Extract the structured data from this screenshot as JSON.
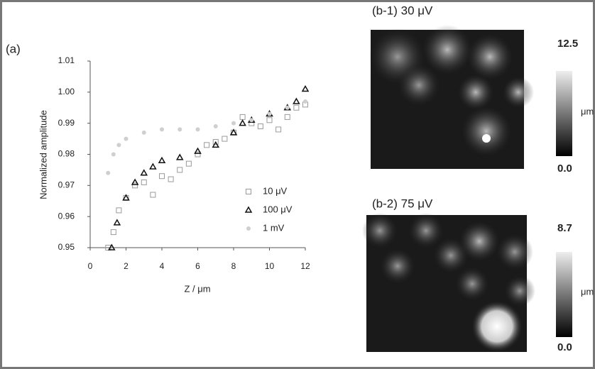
{
  "chart_data": {
    "type": "scatter",
    "panel_label": "(a)",
    "x_label": "Z / μm",
    "y_label": "Normalized amplitude",
    "xlim": [
      0,
      12
    ],
    "xticks": [
      0,
      2,
      4,
      6,
      8,
      10,
      12
    ],
    "ylim": [
      0.95,
      1.01
    ],
    "yticks": [
      0.95,
      0.96,
      0.97,
      0.98,
      0.99,
      {
        "value": 1,
        "label": "1.00"
      },
      1.01
    ],
    "series": [
      {
        "name": "10 μV",
        "color": "#9a9a9a",
        "marker": "square",
        "x": [
          1,
          1.3,
          1.6,
          2,
          2.5,
          3,
          3.5,
          4,
          4.5,
          5,
          5.5,
          6,
          6.5,
          7,
          7.5,
          8,
          8.5,
          9,
          9.5,
          10,
          10.5,
          11,
          11.5,
          12
        ],
        "values": [
          0.95,
          0.955,
          0.962,
          0.966,
          0.97,
          0.971,
          0.967,
          0.973,
          0.972,
          0.975,
          0.977,
          0.98,
          0.983,
          0.984,
          0.985,
          0.987,
          0.992,
          0.99,
          0.989,
          0.991,
          0.988,
          0.992,
          0.995,
          0.996
        ]
      },
      {
        "name": "100 μV",
        "color": "#111111",
        "marker": "triangle",
        "x": [
          1.2,
          1.5,
          2,
          2.5,
          3,
          3.5,
          4,
          5,
          6,
          7,
          8,
          8.5,
          9,
          10,
          11,
          11.5,
          12
        ],
        "values": [
          0.95,
          0.958,
          0.966,
          0.971,
          0.974,
          0.976,
          0.978,
          0.979,
          0.981,
          0.983,
          0.987,
          0.99,
          0.991,
          0.993,
          0.995,
          0.997,
          1.001
        ]
      },
      {
        "name": "1 mV",
        "color": "#cfcfcf",
        "marker": "circle",
        "x": [
          1,
          1.3,
          1.6,
          2,
          3,
          4,
          5,
          6,
          7,
          8,
          9,
          10,
          11,
          12
        ],
        "values": [
          0.974,
          0.98,
          0.983,
          0.985,
          0.987,
          0.988,
          0.988,
          0.988,
          0.989,
          0.99,
          0.991,
          0.993,
          0.995,
          0.997
        ]
      }
    ]
  },
  "panels": [
    {
      "label": "(b-1)  30 μV",
      "scale_max": "12.5",
      "scale_min": "0.0",
      "unit": "μm"
    },
    {
      "label": "(b-2) 75 μV",
      "scale_max": "8.7",
      "scale_min": "0.0",
      "unit": "μm"
    }
  ]
}
